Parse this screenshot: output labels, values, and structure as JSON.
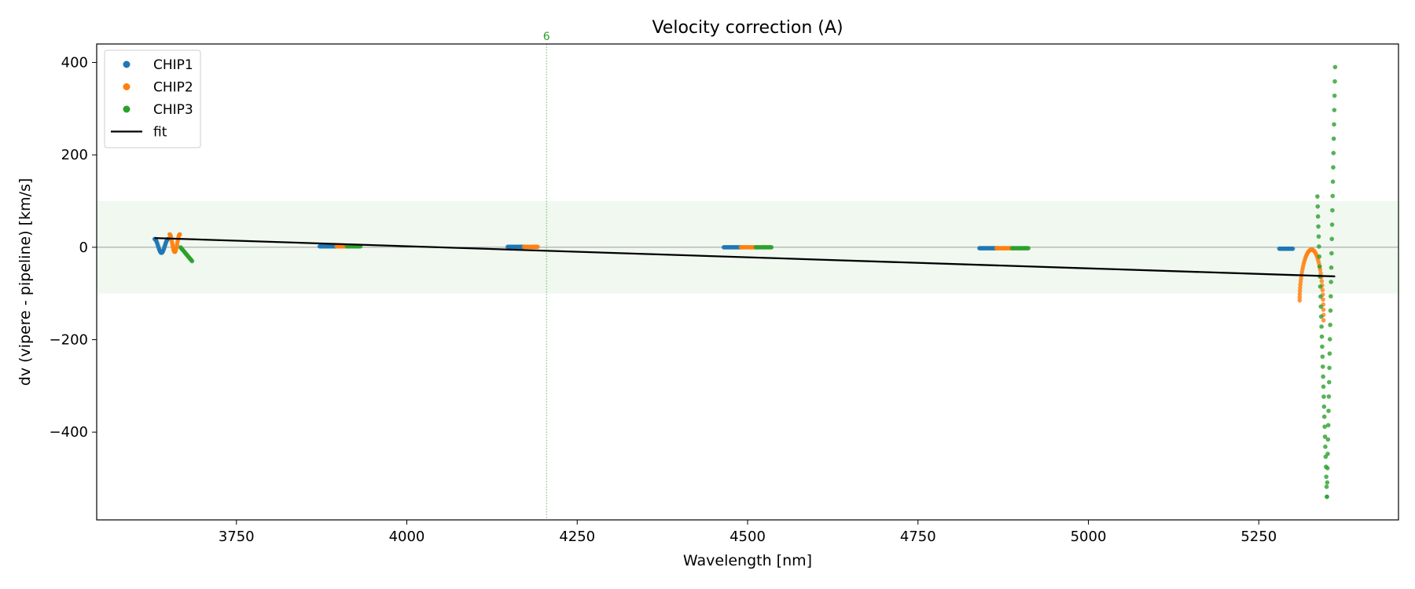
{
  "chart_data": {
    "type": "scatter",
    "title": "Velocity correction (A)",
    "xlabel": "Wavelength [nm]",
    "ylabel": "dv (vipere - pipeline) [km/s]",
    "xlim": [
      3545,
      5455
    ],
    "ylim": [
      -590,
      440
    ],
    "xticks": [
      3750,
      4000,
      4250,
      4500,
      4750,
      5000,
      5250
    ],
    "xtick_labels": [
      "3750",
      "4000",
      "4250",
      "4500",
      "4750",
      "5000",
      "5250"
    ],
    "yticks": [
      400,
      200,
      0,
      -200,
      -400
    ],
    "ytick_labels": [
      "400",
      "200",
      "0",
      "−200",
      "−400"
    ],
    "band": {
      "y_min": -100,
      "y_max": 100,
      "color": "#2ca02c"
    },
    "zero_line": 0,
    "vline": {
      "x": 4205,
      "label": "6",
      "color": "#2ca02c"
    },
    "colors": {
      "CHIP1": "#1f77b4",
      "CHIP2": "#ff7f0e",
      "CHIP3": "#2ca02c",
      "fit": "#000000"
    },
    "legend": {
      "location": "upper-left",
      "entries": [
        {
          "label": "CHIP1",
          "kind": "marker",
          "series": "CHIP1"
        },
        {
          "label": "CHIP2",
          "kind": "marker",
          "series": "CHIP2"
        },
        {
          "label": "CHIP3",
          "kind": "marker",
          "series": "CHIP3"
        },
        {
          "label": "fit",
          "kind": "line",
          "series": "fit"
        }
      ]
    },
    "fit": {
      "x": [
        3630,
        5362
      ],
      "y": [
        20,
        -63
      ]
    },
    "series": [
      {
        "name": "CHIP1",
        "segments": [
          {
            "shape": "wave",
            "x0": 3630,
            "x1": 3650,
            "ymin": -12,
            "ymax": 18,
            "cycles": 1.0,
            "n": 30
          },
          {
            "shape": "flat",
            "x0": 3872,
            "x1": 3896,
            "y": 2,
            "n": 24
          },
          {
            "shape": "flat",
            "x0": 4148,
            "x1": 4172,
            "y": 1,
            "n": 24
          },
          {
            "shape": "flat",
            "x0": 4465,
            "x1": 4490,
            "y": 0,
            "n": 24
          },
          {
            "shape": "flat",
            "x0": 4840,
            "x1": 4865,
            "y": -2,
            "n": 24
          },
          {
            "shape": "flat",
            "x0": 5280,
            "x1": 5300,
            "y": -3,
            "n": 20
          }
        ]
      },
      {
        "name": "CHIP2",
        "segments": [
          {
            "shape": "wave",
            "x0": 3652,
            "x1": 3667,
            "ymin": -10,
            "ymax": 28,
            "cycles": 1.0,
            "n": 28
          },
          {
            "shape": "flat",
            "x0": 3897,
            "x1": 3912,
            "y": 2,
            "n": 16
          },
          {
            "shape": "flat",
            "x0": 4172,
            "x1": 4192,
            "y": 1,
            "n": 18
          },
          {
            "shape": "flat",
            "x0": 4490,
            "x1": 4512,
            "y": 0,
            "n": 20
          },
          {
            "shape": "flat",
            "x0": 4865,
            "x1": 4888,
            "y": -2,
            "n": 20
          },
          {
            "shape": "arch",
            "x0": 5310,
            "x1": 5345,
            "ypeak": -5,
            "yleft": -115,
            "yright": -158,
            "n": 46
          }
        ]
      },
      {
        "name": "CHIP3",
        "segments": [
          {
            "shape": "ramp",
            "x0": 3668,
            "x1": 3685,
            "y0": 0,
            "y1": -30,
            "n": 18
          },
          {
            "shape": "flat",
            "x0": 3912,
            "x1": 3932,
            "y": 2,
            "n": 18
          },
          {
            "shape": "flat",
            "x0": 4512,
            "x1": 4535,
            "y": 0,
            "n": 20
          },
          {
            "shape": "flat",
            "x0": 4888,
            "x1": 4912,
            "y": -2,
            "n": 20
          },
          {
            "shape": "vee",
            "x0": 5336,
            "x1": 5362,
            "xmin": 5350,
            "ymin": -540,
            "yleft": 110,
            "yright": 390,
            "n": 62
          }
        ]
      }
    ]
  }
}
